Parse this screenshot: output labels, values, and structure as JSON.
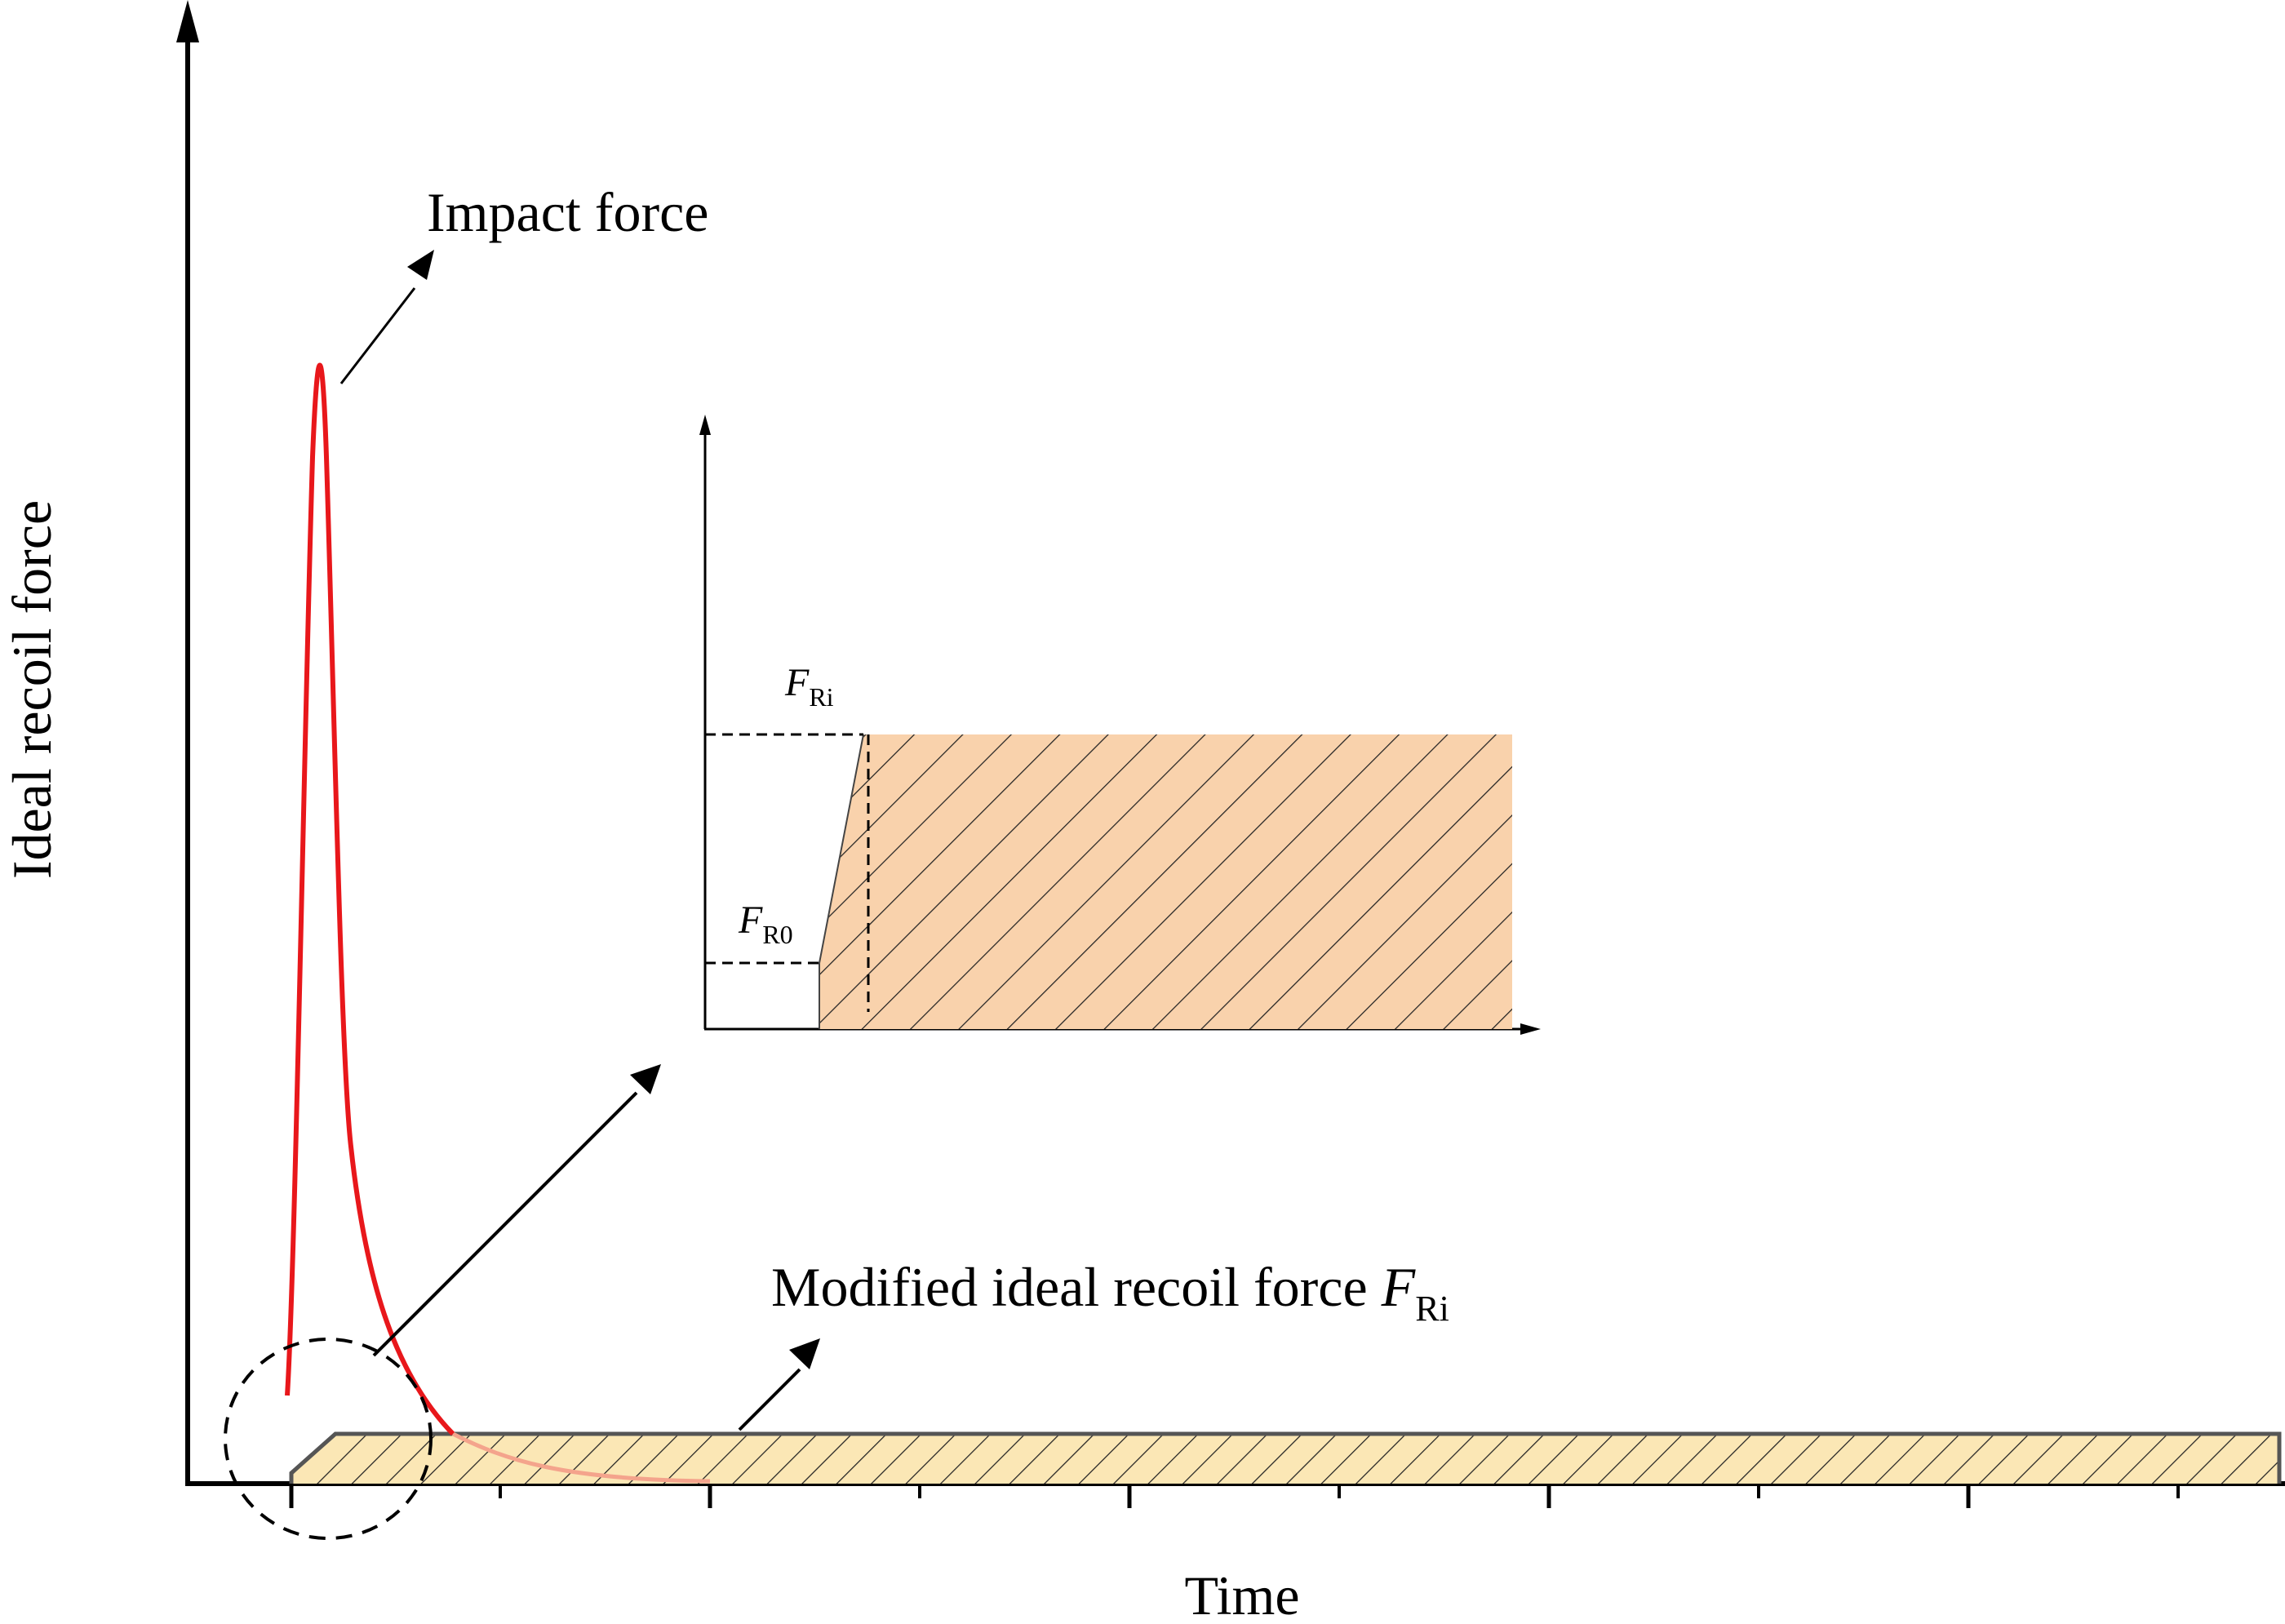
{
  "labels": {
    "y_axis": "Ideal recoil force",
    "x_axis": "Time",
    "impact": "Impact force",
    "modified_prefix": "Modified ideal recoil force ",
    "modified_symbol": "F",
    "modified_subscript": "Ri",
    "inset_fri_symbol": "F",
    "inset_fri_subscript": "Ri",
    "inset_fr0_symbol": "F",
    "inset_fr0_subscript": "R0"
  },
  "colors": {
    "impact_curve": "#e8171b",
    "impact_tail": "#f4a48c",
    "band_fill": "#fbe7b5",
    "band_stroke": "#555555",
    "inset_fill": "#f9d2ac",
    "hatch": "#222222"
  },
  "icons": {
    "annotation_arrow": "arrow-icon",
    "zoom_circle": "dashed-circle-icon"
  }
}
